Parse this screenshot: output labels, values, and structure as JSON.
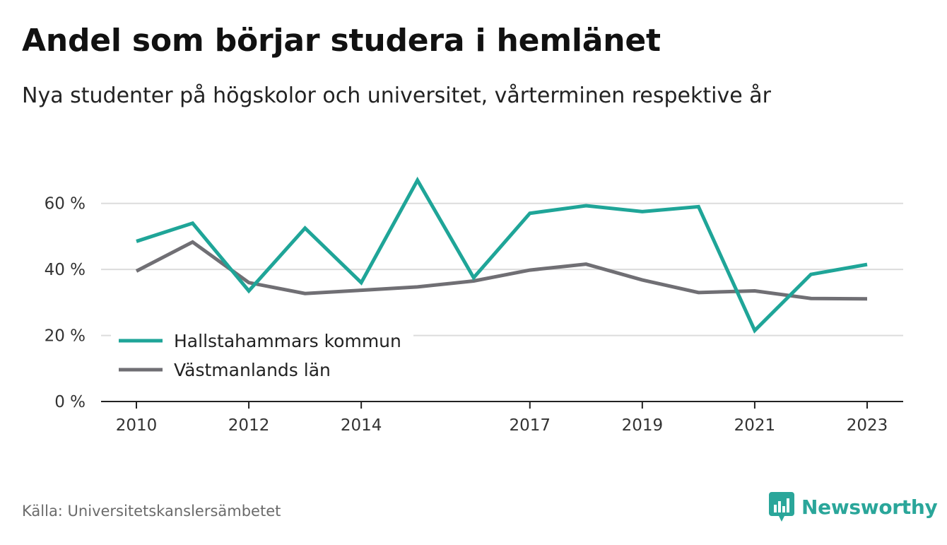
{
  "title": "Andel som börjar studera i hemlänet",
  "subtitle": "Nya studenter på högskolor och universitet, vårterminen respektive år",
  "source": "Källa: Universitetskanslersämbetet",
  "brand": {
    "name": "Newsworthy",
    "icon": "bar-chart-logo-icon",
    "color": "#2aa69a"
  },
  "chart_data": {
    "type": "line",
    "x": [
      2010,
      2011,
      2012,
      2013,
      2014,
      2015,
      2016,
      2017,
      2018,
      2019,
      2020,
      2021,
      2022,
      2023
    ],
    "x_tick_labels": [
      "2010",
      "2012",
      "2014",
      "2017",
      "2019",
      "2021",
      "2023"
    ],
    "y_tick_labels": [
      "0 %",
      "20 %",
      "40 %",
      "60 %"
    ],
    "y_ticks": [
      0,
      20,
      40,
      60
    ],
    "ylim": [
      0,
      70
    ],
    "xlim": [
      2010,
      2023
    ],
    "grid": true,
    "legend_position": "bottom-left",
    "series": [
      {
        "name": "Hallstahammars kommun",
        "color": "#1fa598",
        "values": [
          48.5,
          54,
          33.5,
          52.5,
          36,
          67,
          37.5,
          57,
          59.3,
          57.5,
          59,
          21.5,
          38.5,
          41.5
        ]
      },
      {
        "name": "Västmanlands län",
        "color": "#706f74",
        "values": [
          39.5,
          48.3,
          36,
          32.7,
          33.7,
          34.7,
          36.5,
          39.8,
          41.6,
          36.8,
          33,
          33.5,
          31.2,
          31.1
        ]
      }
    ]
  }
}
